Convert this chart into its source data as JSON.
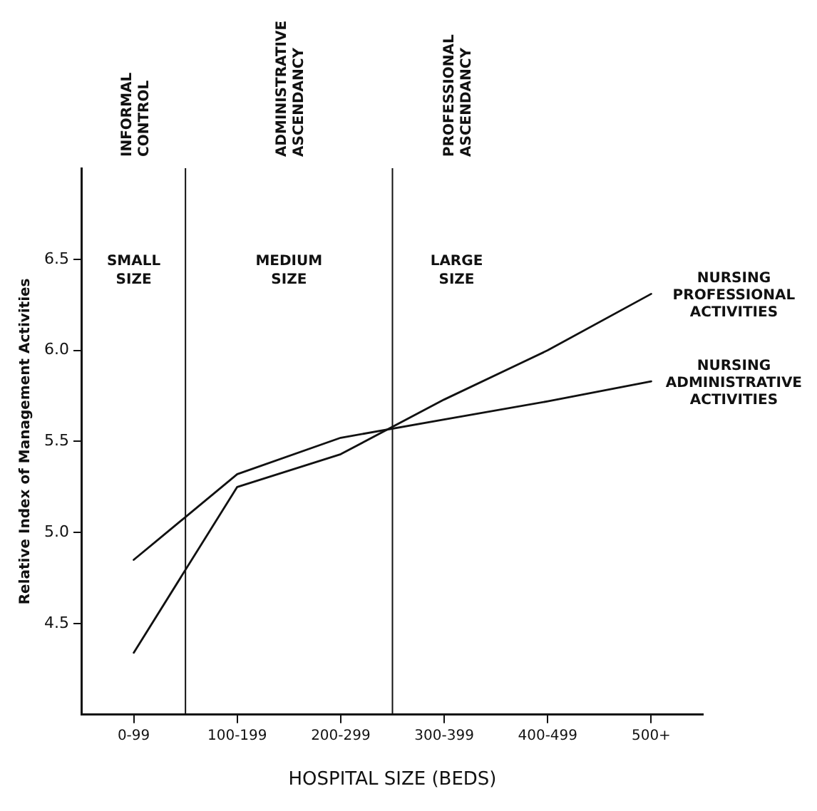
{
  "chart_data": {
    "type": "line",
    "xlabel": "HOSPITAL SIZE (BEDS)",
    "ylabel": "Relative Index of Management Activities",
    "categories": [
      "0-99",
      "100-199",
      "200-299",
      "300-399",
      "400-499",
      "500+"
    ],
    "series": [
      {
        "name": "NURSING PROFESSIONAL ACTIVITIES",
        "color": "#111111",
        "values": [
          4.34,
          5.25,
          5.43,
          5.73,
          6.0,
          6.31
        ]
      },
      {
        "name": "NURSING ADMINISTRATIVE ACTIVITIES",
        "color": "#111111",
        "values": [
          4.85,
          5.32,
          5.52,
          5.62,
          5.72,
          5.83
        ]
      }
    ],
    "ylim": [
      4.0,
      7.0
    ],
    "yticks": [
      4.5,
      {
        "value": 5,
        "label": "5.0"
      },
      5.5,
      {
        "value": 6,
        "label": "6.0"
      },
      6.5
    ],
    "annotations": [
      "INFORMAL CONTROL",
      "ADMINISTRATIVE ASCENDANCY",
      "PROFESSIONAL ASCENDANCY",
      "SMALL SIZE",
      "MEDIUM SIZE",
      "LARGE SIZE"
    ],
    "grid": false,
    "legend": false,
    "marker": "none",
    "line_style": "solid"
  }
}
